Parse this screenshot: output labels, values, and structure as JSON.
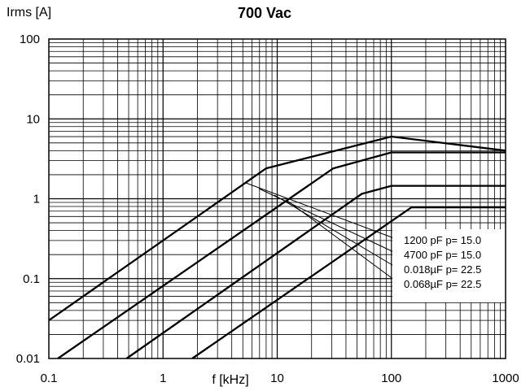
{
  "chart_data": {
    "type": "line",
    "title": "700 Vac",
    "xlabel": "f [kHz]",
    "ylabel": "Irms [A]",
    "xscale": "log",
    "yscale": "log",
    "xlim": [
      0.1,
      1000
    ],
    "ylim": [
      0.01,
      100
    ],
    "x_ticks": [
      "0.1",
      "1",
      "10",
      "100",
      "1000"
    ],
    "y_ticks": [
      "0.01",
      "0.1",
      "1",
      "10",
      "100"
    ],
    "grid": true,
    "legend_position": "right",
    "series": [
      {
        "name": "1200 pF  p= 15.0",
        "x": [
          0.1,
          8,
          100,
          1000
        ],
        "y": [
          0.03,
          2.4,
          6.0,
          4.0
        ]
      },
      {
        "name": "4700 pF  p= 15.0",
        "x": [
          0.12,
          31,
          100,
          1000
        ],
        "y": [
          0.01,
          2.4,
          3.8,
          3.8
        ]
      },
      {
        "name": "0.018µF  p= 22.5",
        "x": [
          0.48,
          55,
          100,
          1000
        ],
        "y": [
          0.01,
          1.15,
          1.45,
          1.45
        ]
      },
      {
        "name": "0.068µF  p= 22.5",
        "x": [
          1.8,
          150,
          1000
        ],
        "y": [
          0.01,
          0.78,
          0.78
        ]
      }
    ]
  }
}
